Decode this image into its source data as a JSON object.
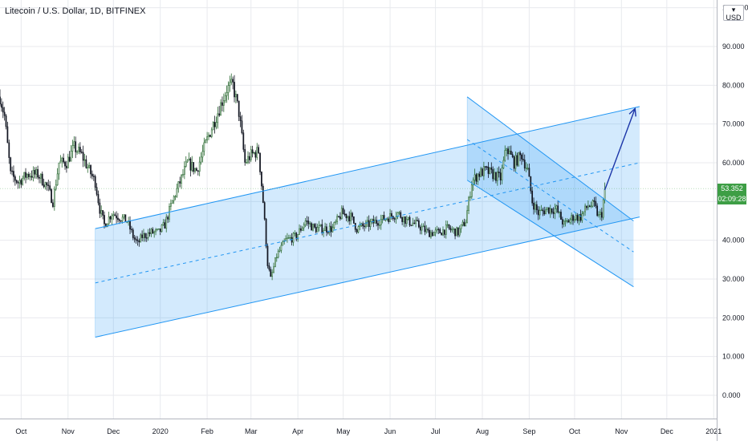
{
  "header": {
    "title": "Litecoin / U.S. Dollar, 1D, BITFINEX",
    "currency": "USD",
    "last_price": "53.352",
    "countdown": "02:09:28"
  },
  "colors": {
    "grid": "#e8eaee",
    "up_candle": "#2c6b33",
    "down_candle": "#131722",
    "channel_line": "#2196f3",
    "channel_fill": "#2196f3",
    "arrow": "#1b35a8",
    "price_badge": "#3d9e45",
    "axis_text": "#131722"
  },
  "chart_data": {
    "type": "candlestick",
    "title": "Litecoin / U.S. Dollar, 1D, BITFINEX",
    "symbol": "LTCUSD",
    "interval": "1D",
    "exchange": "BITFINEX",
    "currency": "USD",
    "y_ticks": [
      "100.000",
      "90.000",
      "80.000",
      "70.000",
      "60.000",
      "50.000",
      "40.000",
      "30.000",
      "20.000",
      "10.000",
      "0.000"
    ],
    "y_tick_values": [
      100,
      90,
      80,
      70,
      60,
      50,
      40,
      30,
      20,
      10,
      0
    ],
    "x_ticks": [
      "Oct",
      "Nov",
      "Dec",
      "2020",
      "Feb",
      "Mar",
      "Apr",
      "May",
      "Jun",
      "Jul",
      "Aug",
      "Sep",
      "Oct",
      "Nov",
      "Dec",
      "2021"
    ],
    "x_tick_dates": [
      "2019-10-01",
      "2019-11-01",
      "2019-12-01",
      "2020-01-01",
      "2020-02-01",
      "2020-03-01",
      "2020-04-01",
      "2020-05-01",
      "2020-06-01",
      "2020-07-01",
      "2020-08-01",
      "2020-09-01",
      "2020-10-01",
      "2020-11-01",
      "2020-12-01",
      "2021-01-01"
    ],
    "ylim": [
      -6,
      102
    ],
    "xlim": [
      "2019-09-17",
      "2021-01-03"
    ],
    "last_price": 53.352,
    "grid": true,
    "price_path": [
      [
        "2019-09-17",
        77
      ],
      [
        "2019-09-20",
        72
      ],
      [
        "2019-09-24",
        57
      ],
      [
        "2019-09-29",
        55
      ],
      [
        "2019-10-05",
        57
      ],
      [
        "2019-10-12",
        57
      ],
      [
        "2019-10-18",
        54
      ],
      [
        "2019-10-22",
        50
      ],
      [
        "2019-10-26",
        60
      ],
      [
        "2019-10-31",
        60
      ],
      [
        "2019-11-05",
        64
      ],
      [
        "2019-11-10",
        62
      ],
      [
        "2019-11-15",
        58
      ],
      [
        "2019-11-19",
        55
      ],
      [
        "2019-11-22",
        48
      ],
      [
        "2019-11-25",
        44
      ],
      [
        "2019-11-30",
        47
      ],
      [
        "2019-12-05",
        46
      ],
      [
        "2019-12-10",
        45
      ],
      [
        "2019-12-14",
        41
      ],
      [
        "2019-12-17",
        39
      ],
      [
        "2019-12-20",
        41
      ],
      [
        "2019-12-26",
        42
      ],
      [
        "2019-12-31",
        42
      ],
      [
        "2020-01-04",
        44
      ],
      [
        "2020-01-09",
        50
      ],
      [
        "2020-01-14",
        55
      ],
      [
        "2020-01-19",
        60
      ],
      [
        "2020-01-25",
        58
      ],
      [
        "2020-02-01",
        66
      ],
      [
        "2020-02-07",
        72
      ],
      [
        "2020-02-11",
        76
      ],
      [
        "2020-02-14",
        79
      ],
      [
        "2020-02-18",
        80
      ],
      [
        "2020-02-22",
        73
      ],
      [
        "2020-02-26",
        60
      ],
      [
        "2020-03-01",
        62
      ],
      [
        "2020-03-06",
        63
      ],
      [
        "2020-03-09",
        50
      ],
      [
        "2020-03-12",
        34
      ],
      [
        "2020-03-14",
        30
      ],
      [
        "2020-03-18",
        36
      ],
      [
        "2020-03-24",
        40
      ],
      [
        "2020-03-31",
        41
      ],
      [
        "2020-04-06",
        45
      ],
      [
        "2020-04-12",
        43
      ],
      [
        "2020-04-18",
        43
      ],
      [
        "2020-04-24",
        43
      ],
      [
        "2020-04-30",
        47
      ],
      [
        "2020-05-06",
        46
      ],
      [
        "2020-05-10",
        43
      ],
      [
        "2020-05-17",
        44
      ],
      [
        "2020-05-24",
        45
      ],
      [
        "2020-05-31",
        46
      ],
      [
        "2020-06-06",
        47
      ],
      [
        "2020-06-12",
        45
      ],
      [
        "2020-06-19",
        44
      ],
      [
        "2020-06-26",
        42
      ],
      [
        "2020-07-03",
        42
      ],
      [
        "2020-07-09",
        43
      ],
      [
        "2020-07-16",
        42
      ],
      [
        "2020-07-21",
        45
      ],
      [
        "2020-07-25",
        55
      ],
      [
        "2020-07-29",
        57
      ],
      [
        "2020-08-03",
        58
      ],
      [
        "2020-08-08",
        57
      ],
      [
        "2020-08-13",
        56
      ],
      [
        "2020-08-17",
        64
      ],
      [
        "2020-08-22",
        60
      ],
      [
        "2020-08-27",
        62
      ],
      [
        "2020-08-31",
        58
      ],
      [
        "2020-09-03",
        50
      ],
      [
        "2020-09-07",
        47
      ],
      [
        "2020-09-13",
        48
      ],
      [
        "2020-09-19",
        48
      ],
      [
        "2020-09-24",
        44
      ],
      [
        "2020-09-30",
        46
      ],
      [
        "2020-10-05",
        46
      ],
      [
        "2020-10-10",
        49
      ],
      [
        "2020-10-14",
        49
      ],
      [
        "2020-10-17",
        46
      ],
      [
        "2020-10-19",
        47
      ],
      [
        "2020-10-21",
        53.352
      ]
    ],
    "drawings": {
      "ascending_channel": {
        "upper": [
          [
            "2019-11-19",
            43
          ],
          [
            "2020-11-13",
            74.5
          ]
        ],
        "lower": [
          [
            "2019-11-19",
            15
          ],
          [
            "2020-11-13",
            46
          ]
        ],
        "midline": [
          [
            "2019-11-19",
            29
          ],
          [
            "2020-11-13",
            60
          ]
        ]
      },
      "descending_channel": {
        "upper": [
          [
            "2020-07-22",
            77
          ],
          [
            "2020-11-09",
            45
          ]
        ],
        "lower": [
          [
            "2020-07-22",
            55.5
          ],
          [
            "2020-11-09",
            28
          ]
        ],
        "midline": [
          [
            "2020-07-22",
            66
          ],
          [
            "2020-11-09",
            37
          ]
        ]
      },
      "projection_arrow": [
        [
          "2020-10-21",
          53
        ],
        [
          "2020-11-10",
          74
        ]
      ]
    }
  }
}
